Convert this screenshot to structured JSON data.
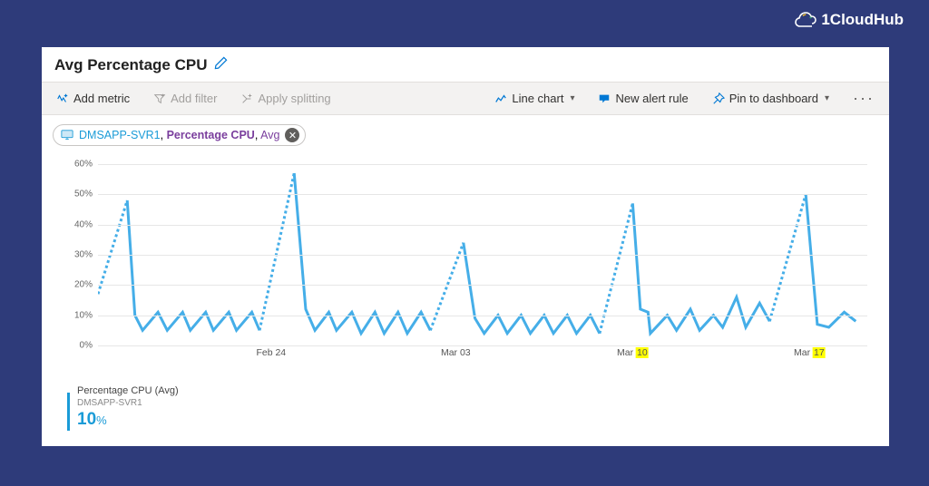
{
  "brand": {
    "name": "1CloudHub"
  },
  "panel": {
    "title": "Avg Percentage CPU",
    "toolbar": {
      "add_metric": "Add metric",
      "add_filter": "Add filter",
      "apply_splitting": "Apply splitting",
      "chart_type": "Line chart",
      "new_alert": "New alert rule",
      "pin": "Pin to dashboard"
    },
    "chip": {
      "resource": "DMSAPP-SVR1",
      "metric": "Percentage CPU",
      "aggregation": "Avg"
    },
    "legend": {
      "metric_name": "Percentage CPU (Avg)",
      "resource": "DMSAPP-SVR1",
      "value": "10",
      "unit": "%"
    }
  },
  "chart": {
    "type": "line",
    "background_color": "#ffffff",
    "grid_color": "#e6e6e6",
    "series_color": "#45aee8",
    "line_width": 1.5,
    "ylim": [
      0,
      60
    ],
    "ytick_step": 10,
    "y_unit": "%",
    "label_fontsize": 10,
    "label_color": "#666666",
    "x_ticks": [
      {
        "pos": 0.225,
        "label_pre": "Feb ",
        "label_hl": "",
        "label_post": "24"
      },
      {
        "pos": 0.465,
        "label_pre": "Mar ",
        "label_hl": "",
        "label_post": "03"
      },
      {
        "pos": 0.695,
        "label_pre": "Mar ",
        "label_hl": "10",
        "label_post": ""
      },
      {
        "pos": 0.925,
        "label_pre": "Mar ",
        "label_hl": "17",
        "label_post": ""
      }
    ],
    "segments": [
      {
        "dashed": true,
        "points": [
          [
            0.0,
            17
          ],
          [
            0.038,
            48
          ]
        ]
      },
      {
        "dashed": false,
        "points": [
          [
            0.038,
            48
          ],
          [
            0.048,
            10
          ],
          [
            0.058,
            5
          ],
          [
            0.078,
            11
          ],
          [
            0.09,
            5
          ],
          [
            0.11,
            11
          ],
          [
            0.12,
            5
          ],
          [
            0.14,
            11
          ],
          [
            0.15,
            5
          ],
          [
            0.17,
            11
          ],
          [
            0.18,
            5
          ],
          [
            0.2,
            11
          ],
          [
            0.21,
            5
          ]
        ]
      },
      {
        "dashed": true,
        "points": [
          [
            0.21,
            5
          ],
          [
            0.255,
            57
          ]
        ]
      },
      {
        "dashed": false,
        "points": [
          [
            0.255,
            57
          ],
          [
            0.27,
            12
          ],
          [
            0.282,
            5
          ],
          [
            0.3,
            11
          ],
          [
            0.31,
            5
          ],
          [
            0.33,
            11
          ],
          [
            0.342,
            4
          ],
          [
            0.36,
            11
          ],
          [
            0.372,
            4
          ],
          [
            0.39,
            11
          ],
          [
            0.402,
            4
          ],
          [
            0.42,
            11
          ],
          [
            0.432,
            5
          ]
        ]
      },
      {
        "dashed": true,
        "points": [
          [
            0.432,
            5
          ],
          [
            0.475,
            34
          ]
        ]
      },
      {
        "dashed": false,
        "points": [
          [
            0.475,
            34
          ],
          [
            0.49,
            9
          ],
          [
            0.502,
            4
          ],
          [
            0.52,
            10
          ],
          [
            0.532,
            4
          ],
          [
            0.55,
            10
          ],
          [
            0.562,
            4
          ],
          [
            0.58,
            10
          ],
          [
            0.592,
            4
          ],
          [
            0.61,
            10
          ],
          [
            0.622,
            4
          ],
          [
            0.64,
            10
          ],
          [
            0.652,
            4
          ]
        ]
      },
      {
        "dashed": true,
        "points": [
          [
            0.652,
            4
          ],
          [
            0.695,
            47
          ]
        ]
      },
      {
        "dashed": false,
        "points": [
          [
            0.695,
            47
          ],
          [
            0.705,
            12
          ],
          [
            0.715,
            11
          ],
          [
            0.718,
            4
          ],
          [
            0.74,
            10
          ],
          [
            0.752,
            5
          ],
          [
            0.77,
            12
          ],
          [
            0.782,
            5
          ],
          [
            0.8,
            10
          ],
          [
            0.812,
            6
          ],
          [
            0.83,
            16
          ],
          [
            0.842,
            6
          ],
          [
            0.86,
            14
          ],
          [
            0.873,
            8
          ]
        ]
      },
      {
        "dashed": true,
        "points": [
          [
            0.873,
            8
          ],
          [
            0.92,
            50
          ]
        ]
      },
      {
        "dashed": false,
        "points": [
          [
            0.92,
            50
          ],
          [
            0.935,
            7
          ],
          [
            0.95,
            6
          ],
          [
            0.97,
            11
          ],
          [
            0.985,
            8
          ]
        ]
      }
    ]
  },
  "colors": {
    "page_bg": "#2e3b7a",
    "panel_bg": "#ffffff",
    "azure_blue": "#0078d4",
    "series_blue": "#45aee8",
    "purple": "#7a3e9d",
    "highlight": "#ffff00"
  }
}
